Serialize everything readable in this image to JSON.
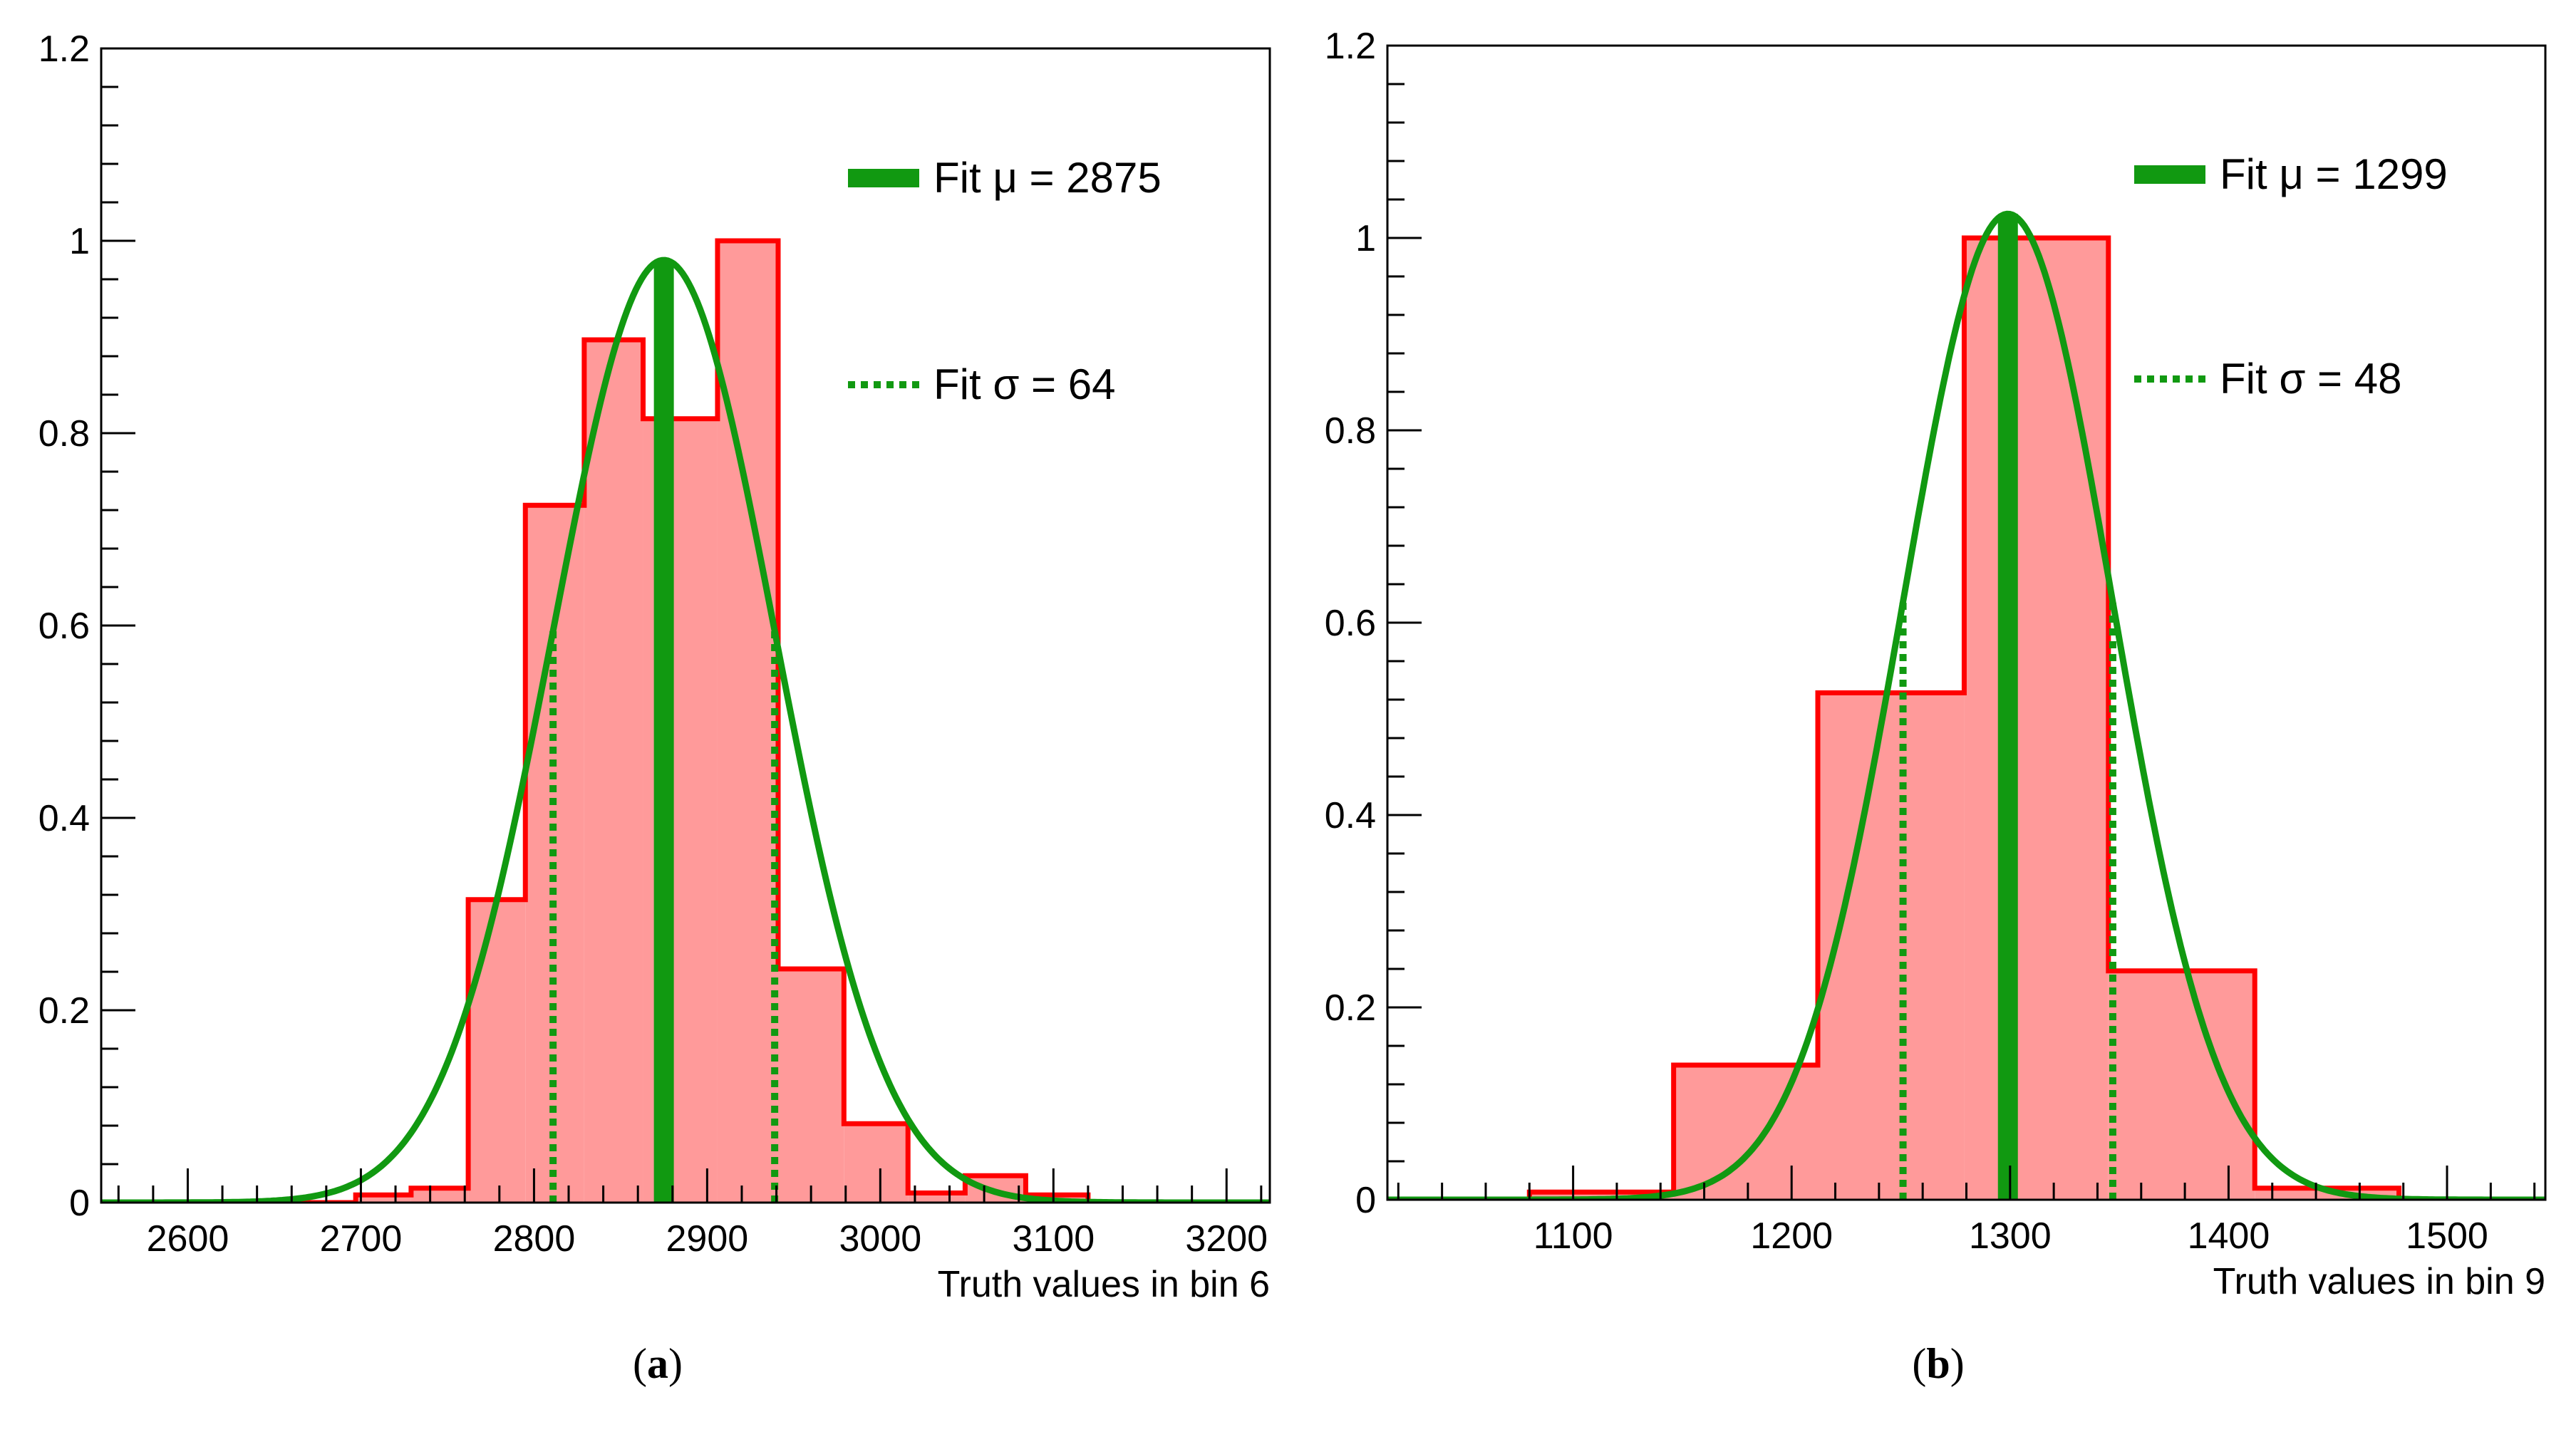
{
  "colors": {
    "hist_line": "#ff0000",
    "hist_fill": "#ff9a9a",
    "fit": "#119911",
    "axis": "#000000"
  },
  "panels": [
    {
      "caption_open": "(",
      "caption_letter": "a",
      "caption_close": ")"
    },
    {
      "caption_open": "(",
      "caption_letter": "b",
      "caption_close": ")"
    }
  ],
  "chart_data": [
    {
      "type": "bar",
      "xlabel": "Truth values in bin 6",
      "ylabel": "",
      "xlim": [
        2550,
        3225
      ],
      "ylim": [
        0,
        1.2
      ],
      "x_ticks": [
        2600,
        2700,
        2800,
        2900,
        3000,
        3100,
        3200
      ],
      "x_tick_labels": [
        "2600",
        "2700",
        "2800",
        "2900",
        "3000",
        "3100",
        "3200"
      ],
      "y_ticks": [
        0,
        0.2,
        0.4,
        0.6,
        0.8,
        1,
        1.2
      ],
      "y_tick_labels": [
        "0",
        "0.2",
        "0.4",
        "0.6",
        "0.8",
        "1",
        "1.2"
      ],
      "bin_edges": [
        2600,
        2633,
        2665,
        2697,
        2729,
        2762,
        2795,
        2829,
        2863,
        2906,
        2941,
        2979,
        3016,
        3049,
        3084,
        3120
      ],
      "values": [
        0.0,
        0.0,
        0.0,
        0.008,
        0.015,
        0.315,
        0.725,
        0.897,
        0.815,
        1.0,
        0.243,
        0.082,
        0.01,
        0.028,
        0.008
      ],
      "fit": {
        "mu": 2875,
        "sigma": 64,
        "amplitude": 0.98
      },
      "legend": [
        {
          "style": "solid",
          "label": "Fit μ = 2875"
        },
        {
          "style": "dotted",
          "label": "Fit σ = 64"
        }
      ],
      "legend_position": "top-right"
    },
    {
      "type": "bar",
      "xlabel": "Truth values in bin 9",
      "ylabel": "",
      "xlim": [
        1015,
        1545
      ],
      "ylim": [
        0,
        1.2
      ],
      "x_ticks": [
        1100,
        1200,
        1300,
        1400,
        1500
      ],
      "x_tick_labels": [
        "1100",
        "1200",
        "1300",
        "1400",
        "1500"
      ],
      "y_ticks": [
        0,
        0.2,
        0.4,
        0.6,
        0.8,
        1,
        1.2
      ],
      "y_tick_labels": [
        "0",
        "0.2",
        "0.4",
        "0.6",
        "0.8",
        "1",
        "1.2"
      ],
      "bin_edges": [
        1080,
        1146,
        1212,
        1279,
        1345,
        1412,
        1478
      ],
      "values": [
        0.008,
        0.14,
        0.527,
        1.0,
        0.238,
        0.012
      ],
      "fit": {
        "mu": 1299,
        "sigma": 48,
        "amplitude": 1.025
      },
      "legend": [
        {
          "style": "solid",
          "label": "Fit μ = 1299"
        },
        {
          "style": "dotted",
          "label": "Fit σ = 48"
        }
      ],
      "legend_position": "top-right"
    }
  ]
}
